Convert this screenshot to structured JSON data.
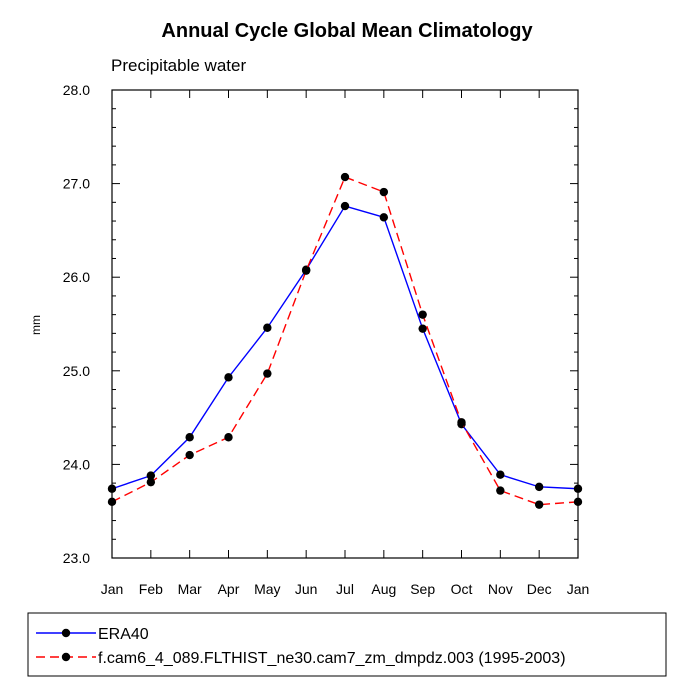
{
  "chart_data": {
    "type": "line",
    "title": "Annual Cycle Global Mean Climatology",
    "subtitle": "Precipitable water",
    "xlabel": "",
    "ylabel": "mm",
    "categories": [
      "Jan",
      "Feb",
      "Mar",
      "Apr",
      "May",
      "Jun",
      "Jul",
      "Aug",
      "Sep",
      "Oct",
      "Nov",
      "Dec",
      "Jan"
    ],
    "y_tick_labels": [
      "23.0",
      "24.0",
      "25.0",
      "26.0",
      "27.0",
      "28.0"
    ],
    "ylim": [
      23.0,
      28.0
    ],
    "grid": false,
    "legend_position": "bottom",
    "series": [
      {
        "name": "ERA40",
        "color": "#0000ff",
        "style": "solid",
        "marker": "filled-circle",
        "values": [
          23.74,
          23.88,
          24.29,
          24.93,
          25.46,
          26.08,
          26.76,
          26.64,
          25.45,
          24.43,
          23.89,
          23.76,
          23.74
        ]
      },
      {
        "name": "f.cam6_4_089.FLTHIST_ne30.cam7_zm_dmpdz.003 (1995-2003)",
        "color": "#ff0000",
        "style": "dashed",
        "marker": "filled-circle",
        "values": [
          23.6,
          23.81,
          24.1,
          24.29,
          24.97,
          26.07,
          27.07,
          26.91,
          25.6,
          24.45,
          23.72,
          23.57,
          23.6
        ]
      }
    ]
  }
}
